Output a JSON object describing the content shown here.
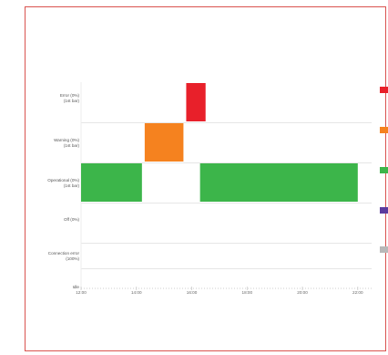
{
  "chart_data": {
    "type": "bar",
    "title": "",
    "xlabel": "",
    "ylabel": "",
    "x_ticks": [
      "12:00",
      "14:00",
      "16:00",
      "18:00",
      "20:00",
      "22:00"
    ],
    "xlim": [
      12.0,
      22.5
    ],
    "rows": [
      {
        "key": "error",
        "label_line1": "Error (0%)",
        "label_line2": "(1st bar)"
      },
      {
        "key": "warning",
        "label_line1": "Warning (0%)",
        "label_line2": "(1st bar)"
      },
      {
        "key": "operating",
        "label_line1": "Operational (0%)",
        "label_line2": "(1st bar)"
      },
      {
        "key": "off",
        "label_line1": "Off (0%)",
        "label_line2": ""
      },
      {
        "key": "connection",
        "label_line1": "Connection error",
        "label_line2": "(100%)"
      },
      {
        "key": "idle",
        "label_line1": "Idle",
        "label_line2": ""
      }
    ],
    "segments": [
      {
        "row": "error",
        "start": 15.8,
        "end": 16.5,
        "color": "#e8202a"
      },
      {
        "row": "warning",
        "start": 14.3,
        "end": 15.7,
        "color": "#f5821f"
      },
      {
        "row": "operating",
        "start": 12.0,
        "end": 14.2,
        "color": "#3cb54a"
      },
      {
        "row": "operating",
        "start": 16.3,
        "end": 22.0,
        "color": "#3cb54a"
      }
    ],
    "legend_colors": [
      "#e8202a",
      "#f5821f",
      "#3cb54a",
      "#5b3b9e",
      "#b8b8b8"
    ],
    "grid": true
  }
}
